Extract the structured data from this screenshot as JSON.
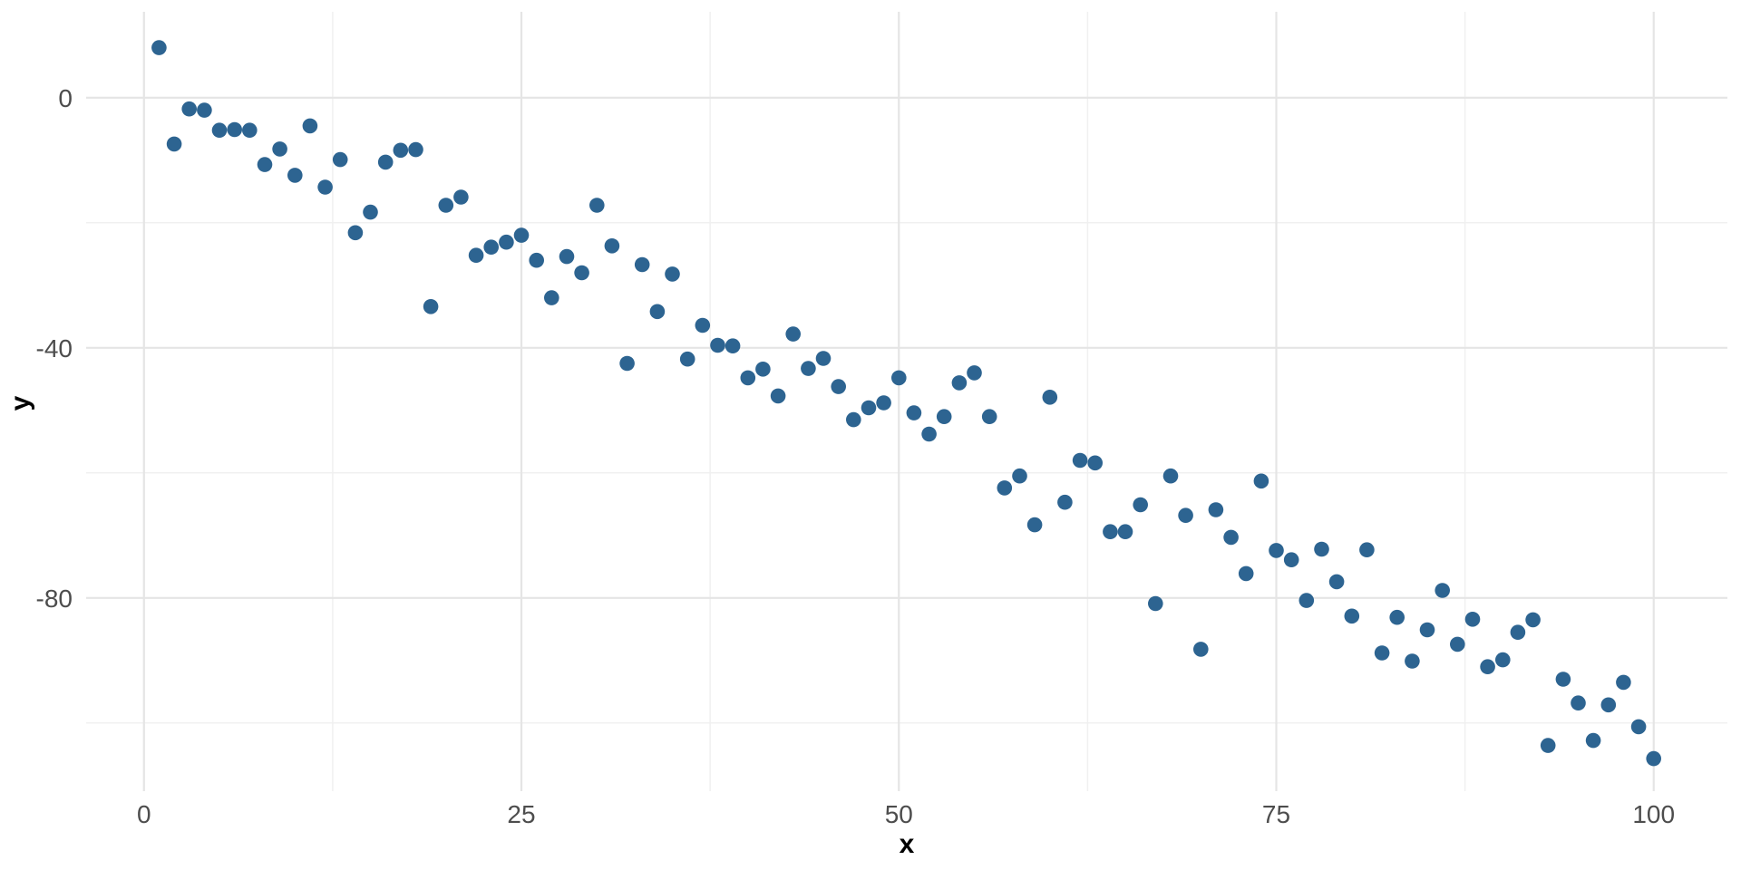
{
  "figure": {
    "kind": "ggplot-style scatter plot, minimal theme, white background, no axis lines or tick marks"
  },
  "chart_data": {
    "type": "scatter",
    "title": "",
    "xlabel": "x",
    "ylabel": "y",
    "legend": false,
    "grid": "major and minor gridlines, light gray on white",
    "x_axis": {
      "tick_values": [
        0,
        25,
        50,
        75,
        100
      ],
      "tick_labels": [
        "0",
        "25",
        "50",
        "75",
        "100"
      ],
      "minor_values": [
        12.5,
        37.5,
        62.5,
        87.5
      ],
      "lim": [
        -3.83,
        104.88
      ]
    },
    "y_axis": {
      "tick_values": [
        0,
        -40,
        -80
      ],
      "tick_labels": [
        "0",
        "-40",
        "-80"
      ],
      "minor_values": [
        -20,
        -60,
        -100
      ],
      "lim": [
        -110.9,
        13.74
      ]
    },
    "colors": {
      "point": "#2d6491",
      "grid_major": "#e5e5e5",
      "grid_minor": "#f0f0f0",
      "tick_label": "#4d4d4d",
      "axis_title": "#000000",
      "background": "#ffffff"
    },
    "point_radius_px": 8.3,
    "points": {
      "x": [
        1,
        2,
        3,
        4,
        5,
        6,
        7,
        8,
        9,
        10,
        11,
        12,
        13,
        14,
        15,
        16,
        17,
        18,
        19,
        20,
        21,
        22,
        23,
        24,
        25,
        26,
        27,
        28,
        29,
        30,
        31,
        32,
        33,
        34,
        35,
        36,
        37,
        38,
        39,
        40,
        41,
        42,
        43,
        44,
        45,
        46,
        47,
        48,
        49,
        50,
        51,
        52,
        53,
        54,
        55,
        56,
        57,
        58,
        59,
        60,
        61,
        62,
        63,
        64,
        65,
        66,
        67,
        68,
        69,
        70,
        71,
        72,
        73,
        74,
        75,
        76,
        77,
        78,
        79,
        80,
        81,
        82,
        83,
        84,
        85,
        86,
        87,
        88,
        89,
        90,
        91,
        92,
        93,
        94,
        95,
        96,
        97,
        98,
        99,
        100
      ],
      "y": [
        8.0,
        -7.4,
        -1.8,
        -2.0,
        -5.2,
        -5.1,
        -5.2,
        -10.7,
        -8.2,
        -12.4,
        -4.5,
        -14.3,
        -9.9,
        -21.6,
        -18.3,
        -10.3,
        -8.4,
        -8.3,
        -33.4,
        -17.2,
        -15.9,
        -25.2,
        -23.9,
        -23.1,
        -22.0,
        -26.0,
        -32.0,
        -25.4,
        -28.0,
        -17.2,
        -23.7,
        -42.5,
        -26.7,
        -34.2,
        -28.2,
        -41.8,
        -36.4,
        -39.6,
        -39.7,
        -44.8,
        -43.4,
        -47.7,
        -37.8,
        -43.3,
        -41.7,
        -46.2,
        -51.5,
        -49.6,
        -48.8,
        -44.8,
        -50.4,
        -53.8,
        -51.0,
        -45.6,
        -44.0,
        -51.0,
        -62.4,
        -60.5,
        -68.3,
        -47.9,
        -64.7,
        -58.0,
        -58.4,
        -69.4,
        -69.4,
        -65.1,
        -80.9,
        -60.5,
        -66.8,
        -88.2,
        -65.9,
        -70.3,
        -76.1,
        -61.3,
        -72.4,
        -73.9,
        -80.4,
        -72.2,
        -77.4,
        -82.9,
        -72.3,
        -88.8,
        -83.1,
        -90.1,
        -85.1,
        -78.8,
        -87.4,
        -83.4,
        -91.0,
        -89.9,
        -85.5,
        -83.5,
        -103.6,
        -93.0,
        -96.8,
        -102.8,
        -97.1,
        -93.5,
        -100.6,
        -105.7
      ]
    }
  }
}
